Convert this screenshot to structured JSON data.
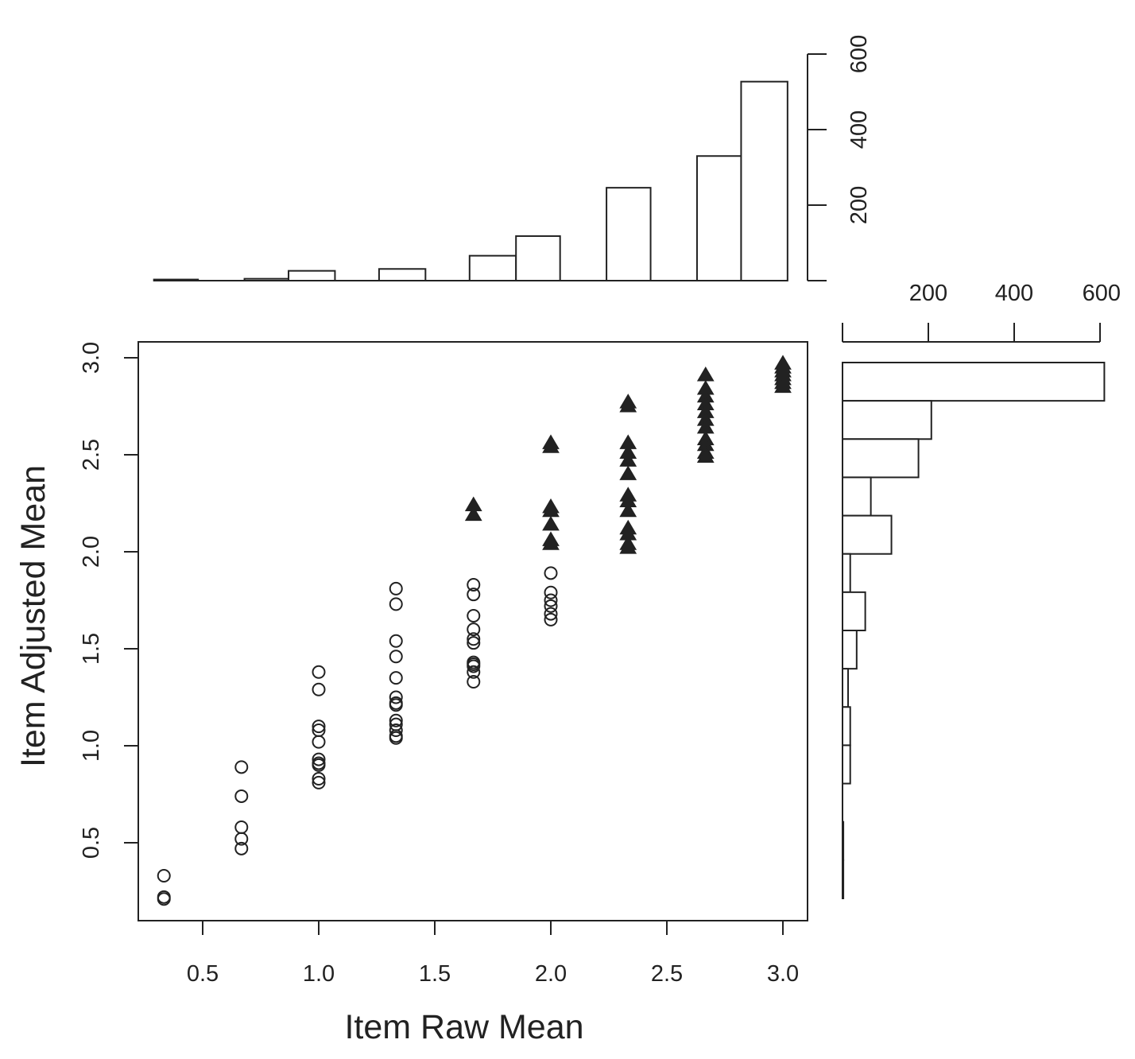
{
  "chart_data": [
    {
      "type": "scatter",
      "xlabel": "Item Raw Mean",
      "ylabel": "Item Adjusted Mean",
      "xlim": [
        0.25,
        3.1
      ],
      "ylim": [
        0.12,
        3.08
      ],
      "xticks": [
        "0.5",
        "1.0",
        "1.5",
        "2.0",
        "2.5",
        "3.0"
      ],
      "yticks": [
        "0.5",
        "1.0",
        "1.5",
        "2.0",
        "2.5",
        "3.0"
      ],
      "series": [
        {
          "marker": "open-circle",
          "points": [
            [
              0.333,
              0.33
            ],
            [
              0.333,
              0.22
            ],
            [
              0.333,
              0.21
            ],
            [
              0.667,
              0.89
            ],
            [
              0.667,
              0.74
            ],
            [
              0.667,
              0.58
            ],
            [
              0.667,
              0.52
            ],
            [
              0.667,
              0.47
            ],
            [
              1.0,
              1.38
            ],
            [
              1.0,
              1.29
            ],
            [
              1.0,
              1.1
            ],
            [
              1.0,
              1.08
            ],
            [
              1.0,
              1.02
            ],
            [
              1.0,
              0.93
            ],
            [
              1.0,
              0.91
            ],
            [
              1.0,
              0.9
            ],
            [
              1.0,
              0.83
            ],
            [
              1.0,
              0.81
            ],
            [
              1.333,
              1.81
            ],
            [
              1.333,
              1.73
            ],
            [
              1.333,
              1.54
            ],
            [
              1.333,
              1.46
            ],
            [
              1.333,
              1.35
            ],
            [
              1.333,
              1.25
            ],
            [
              1.333,
              1.22
            ],
            [
              1.333,
              1.21
            ],
            [
              1.333,
              1.13
            ],
            [
              1.333,
              1.11
            ],
            [
              1.333,
              1.08
            ],
            [
              1.333,
              1.05
            ],
            [
              1.333,
              1.04
            ],
            [
              1.667,
              1.83
            ],
            [
              1.667,
              1.78
            ],
            [
              1.667,
              1.67
            ],
            [
              1.667,
              1.6
            ],
            [
              1.667,
              1.55
            ],
            [
              1.667,
              1.53
            ],
            [
              1.667,
              1.43
            ],
            [
              1.667,
              1.42
            ],
            [
              1.667,
              1.41
            ],
            [
              1.667,
              1.38
            ],
            [
              1.667,
              1.33
            ],
            [
              2.0,
              1.89
            ],
            [
              2.0,
              1.79
            ],
            [
              2.0,
              1.75
            ],
            [
              2.0,
              1.72
            ],
            [
              2.0,
              1.68
            ],
            [
              2.0,
              1.65
            ]
          ]
        },
        {
          "marker": "filled-triangle",
          "points": [
            [
              1.667,
              2.24
            ],
            [
              1.667,
              2.19
            ],
            [
              2.0,
              2.56
            ],
            [
              2.0,
              2.54
            ],
            [
              2.0,
              2.23
            ],
            [
              2.0,
              2.21
            ],
            [
              2.0,
              2.14
            ],
            [
              2.0,
              2.06
            ],
            [
              2.0,
              2.04
            ],
            [
              2.333,
              2.77
            ],
            [
              2.333,
              2.75
            ],
            [
              2.333,
              2.56
            ],
            [
              2.333,
              2.51
            ],
            [
              2.333,
              2.47
            ],
            [
              2.333,
              2.4
            ],
            [
              2.333,
              2.29
            ],
            [
              2.333,
              2.26
            ],
            [
              2.333,
              2.21
            ],
            [
              2.333,
              2.12
            ],
            [
              2.333,
              2.09
            ],
            [
              2.333,
              2.04
            ],
            [
              2.333,
              2.02
            ],
            [
              2.667,
              2.91
            ],
            [
              2.667,
              2.84
            ],
            [
              2.667,
              2.8
            ],
            [
              2.667,
              2.76
            ],
            [
              2.667,
              2.72
            ],
            [
              2.667,
              2.68
            ],
            [
              2.667,
              2.64
            ],
            [
              2.667,
              2.58
            ],
            [
              2.667,
              2.55
            ],
            [
              2.667,
              2.51
            ],
            [
              2.667,
              2.49
            ],
            [
              3.0,
              2.97
            ],
            [
              3.0,
              2.95
            ],
            [
              3.0,
              2.93
            ],
            [
              3.0,
              2.91
            ],
            [
              3.0,
              2.89
            ],
            [
              3.0,
              2.87
            ],
            [
              3.0,
              2.85
            ]
          ]
        }
      ]
    },
    {
      "type": "bar",
      "orientation": "vertical",
      "placement": "top",
      "bins": [
        {
          "from": 0.29,
          "to": 0.48,
          "count": 3
        },
        {
          "from": 0.48,
          "to": 0.68,
          "count": 0
        },
        {
          "from": 0.68,
          "to": 0.87,
          "count": 5
        },
        {
          "from": 0.87,
          "to": 1.07,
          "count": 26
        },
        {
          "from": 1.07,
          "to": 1.26,
          "count": 0
        },
        {
          "from": 1.26,
          "to": 1.46,
          "count": 31
        },
        {
          "from": 1.46,
          "to": 1.65,
          "count": 0
        },
        {
          "from": 1.65,
          "to": 1.85,
          "count": 66
        },
        {
          "from": 1.85,
          "to": 2.04,
          "count": 118
        },
        {
          "from": 2.04,
          "to": 2.24,
          "count": 0
        },
        {
          "from": 2.24,
          "to": 2.43,
          "count": 246
        },
        {
          "from": 2.43,
          "to": 2.63,
          "count": 0
        },
        {
          "from": 2.63,
          "to": 2.82,
          "count": 330
        },
        {
          "from": 2.82,
          "to": 3.02,
          "count": 527
        }
      ],
      "ylim": [
        0,
        600
      ],
      "ticks": [
        "200",
        "400",
        "600"
      ]
    },
    {
      "type": "bar",
      "orientation": "horizontal",
      "placement": "right",
      "bins": [
        {
          "from": 2.8,
          "to": 3.0,
          "count": 610
        },
        {
          "from": 2.6,
          "to": 2.8,
          "count": 207
        },
        {
          "from": 2.4,
          "to": 2.6,
          "count": 177
        },
        {
          "from": 2.2,
          "to": 2.4,
          "count": 66
        },
        {
          "from": 2.0,
          "to": 2.2,
          "count": 114
        },
        {
          "from": 1.8,
          "to": 2.0,
          "count": 18
        },
        {
          "from": 1.6,
          "to": 1.8,
          "count": 53
        },
        {
          "from": 1.4,
          "to": 1.6,
          "count": 33
        },
        {
          "from": 1.2,
          "to": 1.4,
          "count": 13
        },
        {
          "from": 1.0,
          "to": 1.2,
          "count": 18
        },
        {
          "from": 0.8,
          "to": 1.0,
          "count": 18
        },
        {
          "from": 0.6,
          "to": 0.8,
          "count": 0
        },
        {
          "from": 0.4,
          "to": 0.6,
          "count": 2
        },
        {
          "from": 0.2,
          "to": 0.4,
          "count": 2
        }
      ],
      "xlim": [
        0,
        600
      ],
      "ticks": [
        "200",
        "400",
        "600"
      ]
    }
  ]
}
